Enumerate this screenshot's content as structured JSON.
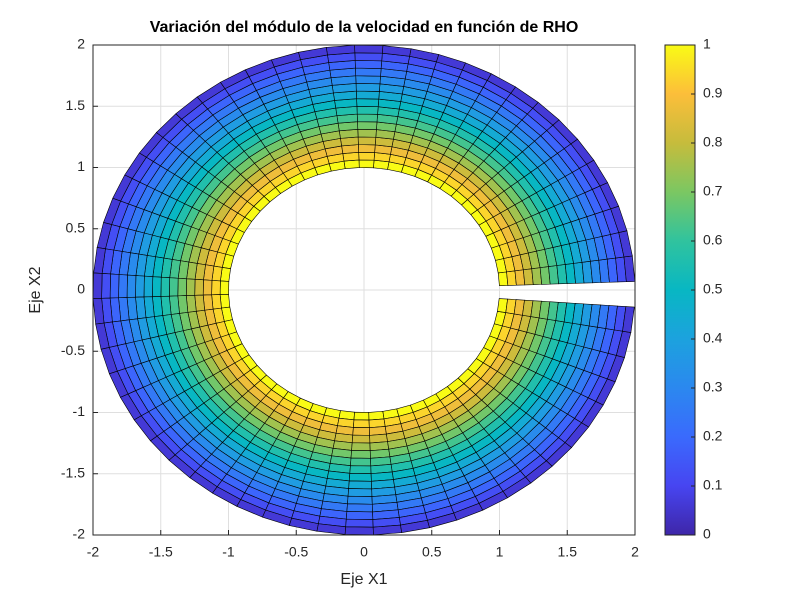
{
  "chart_data": {
    "type": "polar-mesh",
    "title": "Variación del módulo de la velocidad en función de RHO",
    "x_label": "Eje X1",
    "y_label": "Eje X2",
    "xlim": [
      -2,
      2
    ],
    "ylim": [
      -2,
      2
    ],
    "xticks": [
      -2,
      -1.5,
      -1,
      -0.5,
      0,
      0.5,
      1,
      1.5,
      2
    ],
    "yticks": [
      -2,
      -1.5,
      -1,
      -0.5,
      0,
      0.5,
      1,
      1.5,
      2
    ],
    "grid": true,
    "rho": [
      1,
      1.0625,
      1.125,
      1.1875,
      1.25,
      1.3125,
      1.375,
      1.4375,
      1.5,
      1.5625,
      1.625,
      1.6875,
      1.75,
      1.8125,
      1.875,
      1.9375,
      2
    ],
    "theta_deg": [
      2,
      8,
      14,
      20,
      26,
      32,
      38,
      44,
      50,
      56,
      62,
      68,
      74,
      80,
      86,
      92,
      98,
      104,
      110,
      116,
      122,
      128,
      134,
      140,
      146,
      152,
      158,
      164,
      170,
      176,
      182,
      188,
      194,
      200,
      206,
      212,
      218,
      224,
      230,
      236,
      242,
      248,
      254,
      260,
      266,
      272,
      278,
      284,
      290,
      296,
      302,
      308,
      314,
      320,
      326,
      332,
      338,
      344,
      350,
      356
    ],
    "values": [
      1,
      0.9375,
      0.875,
      0.8125,
      0.75,
      0.6875,
      0.625,
      0.5625,
      0.5,
      0.4375,
      0.375,
      0.3125,
      0.25,
      0.1875,
      0.125,
      0.0625
    ],
    "clim": [
      0,
      1
    ],
    "colorbar_ticks": [
      0,
      0.1,
      0.2,
      0.3,
      0.4,
      0.5,
      0.6,
      0.7,
      0.8,
      0.9,
      1
    ],
    "colormap": [
      "#3e26a8",
      "#4745f1",
      "#3a6afd",
      "#2b88ef",
      "#1ca2de",
      "#08b7c3",
      "#30c39e",
      "#7bc762",
      "#c6bc3c",
      "#fcbe3a",
      "#f9fb15"
    ]
  }
}
